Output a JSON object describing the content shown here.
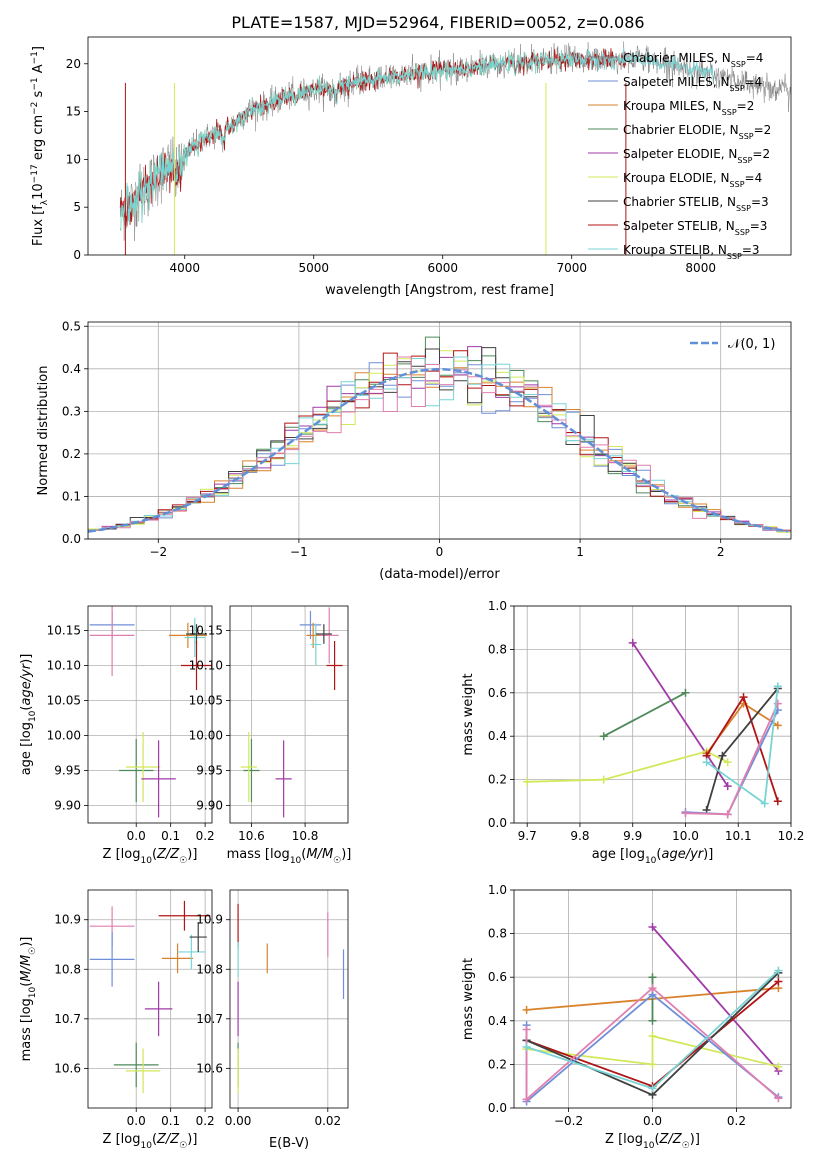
{
  "page": {
    "title": "PLATE=1587, MJD=52964, FIBERID=0052, z=0.086"
  },
  "colors": {
    "chabrier_miles": "#808080",
    "salpeter_miles": "#6f8fd8",
    "kroupa_miles": "#d9822b",
    "chabrier_elodie": "#4e8a5a",
    "salpeter_elodie": "#a03aa8",
    "kroupa_elodie": "#d2e85a",
    "chabrier_stelib": "#404040",
    "salpeter_stelib": "#b01515",
    "kroupa_stelib": "#78d4d4",
    "pink": "#e07fb0",
    "gauss": "#6090d8"
  },
  "chart_data": [
    {
      "id": "spectrum",
      "type": "line",
      "xlabel": "wavelength [Angstrom, rest frame]",
      "ylabel": "Flux [f_λ 10^-17 erg cm^-2 s^-1 A^-1]",
      "xlim": [
        3250,
        8700
      ],
      "ylim": [
        0,
        22.8
      ],
      "xticks": [
        4000,
        5000,
        6000,
        7000,
        8000
      ],
      "yticks": [
        0,
        5,
        10,
        15,
        20
      ],
      "legend_position": "top-right",
      "series": [
        {
          "name": "Chabrier MILES, N_SSP=4",
          "label_main": "Chabrier MILES, N",
          "label_sub": "SSP",
          "label_tail": "=4",
          "color_key": "chabrier_miles"
        },
        {
          "name": "Salpeter MILES, N_SSP=4",
          "label_main": "Salpeter MILES, N",
          "label_sub": "SSP",
          "label_tail": "=4",
          "color_key": "salpeter_miles"
        },
        {
          "name": "Kroupa MILES, N_SSP=2",
          "label_main": "Kroupa MILES, N",
          "label_sub": "SSP",
          "label_tail": "=2",
          "color_key": "kroupa_miles"
        },
        {
          "name": "Chabrier ELODIE, N_SSP=2",
          "label_main": "Chabrier ELODIE, N",
          "label_sub": "SSP",
          "label_tail": "=2",
          "color_key": "chabrier_elodie"
        },
        {
          "name": "Salpeter ELODIE, N_SSP=2",
          "label_main": "Salpeter ELODIE, N",
          "label_sub": "SSP",
          "label_tail": "=2",
          "color_key": "salpeter_elodie"
        },
        {
          "name": "Kroupa ELODIE, N_SSP=4",
          "label_main": "Kroupa ELODIE, N",
          "label_sub": "SSP",
          "label_tail": "=4",
          "color_key": "kroupa_elodie"
        },
        {
          "name": "Chabrier STELIB, N_SSP=3",
          "label_main": "Chabrier STELIB, N",
          "label_sub": "SSP",
          "label_tail": "=3",
          "color_key": "chabrier_stelib"
        },
        {
          "name": "Salpeter STELIB, N_SSP=3",
          "label_main": "Salpeter STELIB, N",
          "label_sub": "SSP",
          "label_tail": "=3",
          "color_key": "salpeter_stelib"
        },
        {
          "name": "Kroupa STELIB, N_SSP=3",
          "label_main": "Kroupa STELIB, N",
          "label_sub": "SSP",
          "label_tail": "=3",
          "color_key": "kroupa_stelib"
        }
      ],
      "continuum": [
        [
          3500,
          4.5
        ],
        [
          3600,
          5.5
        ],
        [
          3700,
          7.0
        ],
        [
          3800,
          8.5
        ],
        [
          3900,
          9.5
        ],
        [
          4000,
          10.3
        ],
        [
          4100,
          12.0
        ],
        [
          4200,
          12.5
        ],
        [
          4300,
          13.0
        ],
        [
          4400,
          14.0
        ],
        [
          4500,
          15.2
        ],
        [
          4600,
          15.5
        ],
        [
          4700,
          16.0
        ],
        [
          4800,
          16.6
        ],
        [
          4900,
          17.0
        ],
        [
          5000,
          17.2
        ],
        [
          5100,
          17.4
        ],
        [
          5200,
          17.6
        ],
        [
          5300,
          17.9
        ],
        [
          5400,
          18.2
        ],
        [
          5500,
          18.4
        ],
        [
          5600,
          18.6
        ],
        [
          5700,
          18.8
        ],
        [
          5800,
          19.0
        ],
        [
          5900,
          19.2
        ],
        [
          6000,
          19.3
        ],
        [
          6100,
          19.5
        ],
        [
          6200,
          19.6
        ],
        [
          6300,
          19.7
        ],
        [
          6400,
          19.8
        ],
        [
          6500,
          20.0
        ],
        [
          6600,
          20.1
        ],
        [
          6700,
          20.2
        ],
        [
          6800,
          20.3
        ],
        [
          6900,
          20.4
        ],
        [
          7000,
          20.5
        ],
        [
          7100,
          20.5
        ],
        [
          7200,
          20.4
        ],
        [
          7300,
          20.4
        ],
        [
          7400,
          20.4
        ],
        [
          7500,
          20.6
        ],
        [
          7700,
          20.2
        ],
        [
          7900,
          19.5
        ],
        [
          8100,
          18.8
        ],
        [
          8300,
          18.2
        ],
        [
          8500,
          17.6
        ],
        [
          8700,
          17.2
        ]
      ]
    },
    {
      "id": "residuals",
      "type": "bar",
      "xlabel": "(data-model)/error",
      "ylabel": "Normed distribution",
      "xlim": [
        -2.5,
        2.5
      ],
      "ylim": [
        0,
        0.51
      ],
      "xticks": [
        -2,
        -1,
        0,
        1,
        2
      ],
      "yticks": [
        0.0,
        0.1,
        0.2,
        0.3,
        0.4,
        0.5
      ],
      "grid": true,
      "legend_position": "top-right",
      "legend_label": "𝒩(0, 1)",
      "bin_width": 0.1
    },
    {
      "id": "age_vs_Z",
      "type": "scatter",
      "xlabel": "Z [log10(Z/Z☉)]",
      "ylabel": "age [log10(age/yr)]",
      "xlim": [
        -0.14,
        0.22
      ],
      "ylim": [
        9.875,
        10.185
      ],
      "xticks": [
        0.0,
        0.1,
        0.2
      ],
      "yticks": [
        9.9,
        9.95,
        10.0,
        10.05,
        10.1,
        10.15
      ],
      "points": [
        {
          "x": -0.07,
          "y": 10.158,
          "xerr": 0.065,
          "yerr": 0.02,
          "color_key": "salpeter_miles"
        },
        {
          "x": -0.07,
          "y": 10.143,
          "xerr": 0.065,
          "yerr": 0.058,
          "color_key": "pink"
        },
        {
          "x": 0.15,
          "y": 10.143,
          "xerr": 0.055,
          "yerr": 0.018,
          "color_key": "kroupa_miles"
        },
        {
          "x": 0.17,
          "y": 10.14,
          "xerr": 0.03,
          "yerr": 0.028,
          "color_key": "kroupa_stelib"
        },
        {
          "x": 0.175,
          "y": 10.145,
          "xerr": 0.03,
          "yerr": 0.014,
          "color_key": "chabrier_stelib"
        },
        {
          "x": 0.175,
          "y": 10.1,
          "xerr": 0.045,
          "yerr": 0.035,
          "color_key": "salpeter_stelib"
        },
        {
          "x": 0.0,
          "y": 9.95,
          "xerr": 0.05,
          "yerr": 0.045,
          "color_key": "chabrier_elodie"
        },
        {
          "x": 0.02,
          "y": 9.955,
          "xerr": 0.05,
          "yerr": 0.05,
          "color_key": "kroupa_elodie"
        },
        {
          "x": 0.065,
          "y": 9.938,
          "xerr": 0.05,
          "yerr": 0.055,
          "color_key": "salpeter_elodie"
        }
      ]
    },
    {
      "id": "age_vs_mass",
      "type": "scatter",
      "xlabel": "mass [log10(M/M☉)]",
      "ylabel": "",
      "xlim": [
        10.52,
        10.96
      ],
      "ylim": [
        9.875,
        10.185
      ],
      "xticks": [
        10.6,
        10.8
      ],
      "yticks": [
        9.9,
        9.95,
        10.0,
        10.05,
        10.1,
        10.15
      ],
      "points": [
        {
          "x": 10.82,
          "y": 10.158,
          "xerr": 0.04,
          "yerr": 0.02,
          "color_key": "salpeter_miles"
        },
        {
          "x": 10.83,
          "y": 10.143,
          "xerr": 0.025,
          "yerr": 0.018,
          "color_key": "kroupa_miles"
        },
        {
          "x": 10.89,
          "y": 10.143,
          "xerr": 0.035,
          "yerr": 0.04,
          "color_key": "pink"
        },
        {
          "x": 10.84,
          "y": 10.13,
          "xerr": 0.02,
          "yerr": 0.03,
          "color_key": "kroupa_stelib"
        },
        {
          "x": 10.87,
          "y": 10.145,
          "xerr": 0.03,
          "yerr": 0.014,
          "color_key": "chabrier_stelib"
        },
        {
          "x": 10.91,
          "y": 10.1,
          "xerr": 0.03,
          "yerr": 0.035,
          "color_key": "salpeter_stelib"
        },
        {
          "x": 10.6,
          "y": 9.95,
          "xerr": 0.03,
          "yerr": 0.045,
          "color_key": "chabrier_elodie"
        },
        {
          "x": 10.59,
          "y": 9.955,
          "xerr": 0.03,
          "yerr": 0.05,
          "color_key": "kroupa_elodie"
        },
        {
          "x": 10.72,
          "y": 9.938,
          "xerr": 0.03,
          "yerr": 0.055,
          "color_key": "salpeter_elodie"
        }
      ]
    },
    {
      "id": "weight_vs_age",
      "type": "line",
      "xlabel": "age [log10(age/yr)]",
      "ylabel": "mass weight",
      "xlim": [
        9.675,
        10.2
      ],
      "ylim": [
        0,
        1
      ],
      "xticks": [
        9.7,
        9.8,
        9.9,
        10.0,
        10.1,
        10.2
      ],
      "yticks": [
        0.0,
        0.2,
        0.4,
        0.6,
        0.8,
        1.0
      ],
      "grid": true,
      "series": [
        {
          "color_key": "chabrier_elodie",
          "x": [
            9.845,
            10.0
          ],
          "y": [
            0.4,
            0.6
          ]
        },
        {
          "color_key": "salpeter_elodie",
          "x": [
            9.9,
            10.08
          ],
          "y": [
            0.83,
            0.17
          ]
        },
        {
          "color_key": "kroupa_elodie",
          "x": [
            9.7,
            9.845,
            10.04,
            10.08
          ],
          "y": [
            0.19,
            0.2,
            0.33,
            0.28
          ]
        },
        {
          "color_key": "kroupa_miles",
          "x": [
            10.04,
            10.11,
            10.175
          ],
          "y": [
            0.32,
            0.55,
            0.45
          ]
        },
        {
          "color_key": "salpeter_stelib",
          "x": [
            10.04,
            10.11,
            10.175
          ],
          "y": [
            0.31,
            0.58,
            0.1
          ]
        },
        {
          "color_key": "chabrier_stelib",
          "x": [
            10.04,
            10.07,
            10.175
          ],
          "y": [
            0.06,
            0.31,
            0.62
          ]
        },
        {
          "color_key": "salpeter_miles",
          "x": [
            10.0,
            10.08,
            10.175
          ],
          "y": [
            0.05,
            0.04,
            0.52
          ]
        },
        {
          "color_key": "pink",
          "x": [
            10.0,
            10.08,
            10.175
          ],
          "y": [
            0.045,
            0.04,
            0.55
          ]
        },
        {
          "color_key": "kroupa_stelib",
          "x": [
            10.04,
            10.15,
            10.175
          ],
          "y": [
            0.28,
            0.09,
            0.63
          ]
        }
      ]
    },
    {
      "id": "mass_vs_Z",
      "type": "scatter",
      "xlabel": "Z [log10(Z/Z☉)]",
      "ylabel": "mass [log10(M/M☉)]",
      "xlim": [
        -0.14,
        0.22
      ],
      "ylim": [
        10.52,
        10.96
      ],
      "xticks": [
        0.0,
        0.1,
        0.2
      ],
      "yticks": [
        10.6,
        10.7,
        10.8,
        10.9
      ],
      "points": [
        {
          "x": -0.07,
          "y": 10.887,
          "xerr": 0.065,
          "yerr": 0.04,
          "color_key": "pink"
        },
        {
          "x": -0.07,
          "y": 10.82,
          "xerr": 0.065,
          "yerr": 0.055,
          "color_key": "salpeter_miles"
        },
        {
          "x": 0.14,
          "y": 10.908,
          "xerr": 0.075,
          "yerr": 0.03,
          "color_key": "salpeter_stelib"
        },
        {
          "x": 0.12,
          "y": 10.822,
          "xerr": 0.045,
          "yerr": 0.03,
          "color_key": "kroupa_miles"
        },
        {
          "x": 0.16,
          "y": 10.835,
          "xerr": 0.04,
          "yerr": 0.035,
          "color_key": "kroupa_stelib"
        },
        {
          "x": 0.18,
          "y": 10.865,
          "xerr": 0.025,
          "yerr": 0.03,
          "color_key": "chabrier_stelib"
        },
        {
          "x": 0.065,
          "y": 10.72,
          "xerr": 0.04,
          "yerr": 0.055,
          "color_key": "salpeter_elodie"
        },
        {
          "x": 0.0,
          "y": 10.607,
          "xerr": 0.065,
          "yerr": 0.045,
          "color_key": "chabrier_elodie"
        },
        {
          "x": 0.02,
          "y": 10.595,
          "xerr": 0.05,
          "yerr": 0.045,
          "color_key": "kroupa_elodie"
        }
      ]
    },
    {
      "id": "mass_vs_ebv",
      "type": "scatter",
      "xlabel": "E(B-V)",
      "ylabel": "",
      "xlim": [
        -0.0018,
        0.0245
      ],
      "ylim": [
        10.52,
        10.96
      ],
      "xticks": [
        0.0,
        0.02
      ],
      "yticks": [
        10.6,
        10.7,
        10.8,
        10.9
      ],
      "points": [
        {
          "x": 0.0,
          "y": 10.887,
          "xerr": 0,
          "yerr": 0.045,
          "color_key": "salpeter_stelib"
        },
        {
          "x": 0.0,
          "y": 10.72,
          "xerr": 0,
          "yerr": 0.055,
          "color_key": "salpeter_elodie"
        },
        {
          "x": 0.0,
          "y": 10.607,
          "xerr": 0,
          "yerr": 0.045,
          "color_key": "chabrier_elodie"
        },
        {
          "x": 0.0,
          "y": 10.595,
          "xerr": 0,
          "yerr": 0.045,
          "color_key": "kroupa_elodie"
        },
        {
          "x": 0.0,
          "y": 10.82,
          "xerr": 0,
          "yerr": 0.035,
          "color_key": "kroupa_stelib"
        },
        {
          "x": 0.0065,
          "y": 10.822,
          "xerr": 0,
          "yerr": 0.03,
          "color_key": "kroupa_miles"
        },
        {
          "x": 0.02,
          "y": 10.87,
          "xerr": 0,
          "yerr": 0.045,
          "color_key": "pink"
        },
        {
          "x": 0.0235,
          "y": 10.79,
          "xerr": 0,
          "yerr": 0.05,
          "color_key": "salpeter_miles"
        }
      ]
    },
    {
      "id": "weight_vs_Z",
      "type": "line",
      "xlabel": "Z [log10(Z/Z☉)]",
      "ylabel": "mass weight",
      "xlim": [
        -0.33,
        0.33
      ],
      "ylim": [
        0,
        1
      ],
      "xticks": [
        -0.2,
        0.0,
        0.2
      ],
      "yticks": [
        0.0,
        0.2,
        0.4,
        0.6,
        0.8,
        1.0
      ],
      "grid": true,
      "series": [
        {
          "color_key": "kroupa_miles",
          "x": [
            -0.3,
            0.3
          ],
          "y": [
            0.45,
            0.55
          ]
        },
        {
          "color_key": "chabrier_elodie",
          "x": [
            0.0,
            0.0
          ],
          "y": [
            0.4,
            0.6
          ]
        },
        {
          "color_key": "salpeter_elodie",
          "x": [
            0.0,
            0.3
          ],
          "y": [
            0.83,
            0.17
          ]
        },
        {
          "color_key": "kroupa_elodie",
          "x": [
            -0.3,
            0.0,
            0.0,
            0.3
          ],
          "y": [
            0.27,
            0.2,
            0.33,
            0.19
          ]
        },
        {
          "color_key": "salpeter_stelib",
          "x": [
            -0.3,
            0.0,
            0.3
          ],
          "y": [
            0.31,
            0.1,
            0.58
          ]
        },
        {
          "color_key": "chabrier_stelib",
          "x": [
            -0.3,
            0.0,
            0.3
          ],
          "y": [
            0.31,
            0.06,
            0.62
          ]
        },
        {
          "color_key": "salpeter_miles",
          "x": [
            -0.3,
            -0.3,
            0.0,
            0.3
          ],
          "y": [
            0.38,
            0.03,
            0.52,
            0.05
          ]
        },
        {
          "color_key": "pink",
          "x": [
            -0.3,
            -0.3,
            0.0,
            0.3
          ],
          "y": [
            0.36,
            0.04,
            0.55,
            0.045
          ]
        },
        {
          "color_key": "kroupa_stelib",
          "x": [
            -0.3,
            0.0,
            0.3
          ],
          "y": [
            0.28,
            0.09,
            0.63
          ]
        }
      ]
    }
  ]
}
